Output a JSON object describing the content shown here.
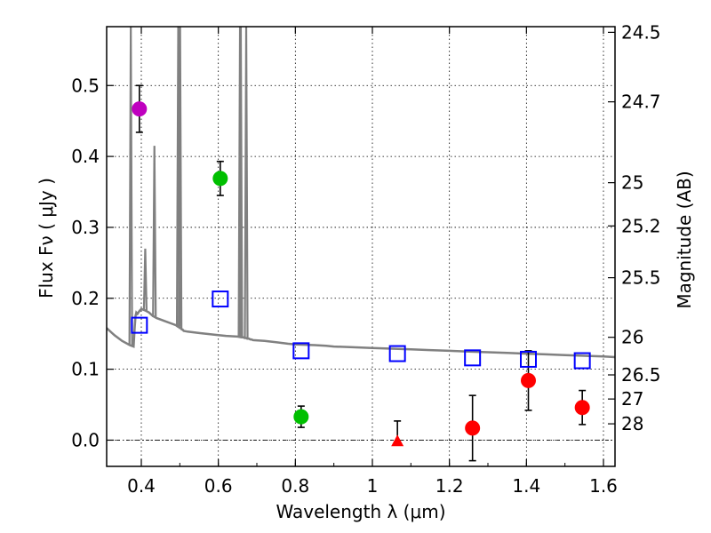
{
  "chart_data": {
    "type": "scatter",
    "xlabel": "Wavelength  λ (μm)",
    "ylabel": "Flux  Fν  ( μJy )",
    "ylabel_right": "Magnitude (AB)",
    "xlim": [
      0.31,
      1.63
    ],
    "ylim": [
      -0.037,
      0.583
    ],
    "x_ticks": [
      0.4,
      0.6,
      0.8,
      1.0,
      1.2,
      1.4,
      1.6
    ],
    "x_tick_labels": [
      "0.4",
      "0.6",
      "0.8",
      "1",
      "1.2",
      "1.4",
      "1.6"
    ],
    "y_ticks": [
      0.0,
      0.1,
      0.2,
      0.3,
      0.4,
      0.5
    ],
    "y_tick_labels": [
      "0.0",
      "0.1",
      "0.2",
      "0.3",
      "0.4",
      "0.5"
    ],
    "right_ticks": [
      {
        "flux": 0.575,
        "label": "24.5"
      },
      {
        "flux": 0.477,
        "label": "24.7"
      },
      {
        "flux": 0.363,
        "label": "25"
      },
      {
        "flux": 0.302,
        "label": "25.2"
      },
      {
        "flux": 0.229,
        "label": "25.5"
      },
      {
        "flux": 0.145,
        "label": "26"
      },
      {
        "flux": 0.092,
        "label": "26.5"
      },
      {
        "flux": 0.058,
        "label": "27"
      },
      {
        "flux": 0.023,
        "label": "28"
      }
    ],
    "grid": true,
    "colors": {
      "magenta": "#bf00bf",
      "green": "#00bf00",
      "red": "#ff0000",
      "blue": "#0000ff",
      "sed": "#808080"
    },
    "series": [
      {
        "name": "magenta point",
        "marker": "circle",
        "color": "magenta",
        "points": [
          {
            "x": 0.395,
            "y": 0.467,
            "err": 0.033
          }
        ]
      },
      {
        "name": "green points",
        "marker": "circle",
        "color": "green",
        "points": [
          {
            "x": 0.605,
            "y": 0.369,
            "err": 0.024
          },
          {
            "x": 0.815,
            "y": 0.033,
            "err": 0.015
          }
        ]
      },
      {
        "name": "red points",
        "marker": "circle",
        "color": "red",
        "points": [
          {
            "x": 1.26,
            "y": 0.017,
            "err": 0.046
          },
          {
            "x": 1.405,
            "y": 0.084,
            "err": 0.042
          },
          {
            "x": 1.545,
            "y": 0.046,
            "err": 0.024
          }
        ]
      },
      {
        "name": "red upper limit",
        "marker": "triangle",
        "color": "red",
        "points": [
          {
            "x": 1.065,
            "y": -0.001,
            "err_up": 0.028
          }
        ]
      },
      {
        "name": "model photometry",
        "marker": "open-square",
        "color": "blue",
        "points": [
          {
            "x": 0.395,
            "y": 0.162
          },
          {
            "x": 0.605,
            "y": 0.199
          },
          {
            "x": 0.815,
            "y": 0.126
          },
          {
            "x": 1.065,
            "y": 0.122
          },
          {
            "x": 1.26,
            "y": 0.116
          },
          {
            "x": 1.405,
            "y": 0.114
          },
          {
            "x": 1.545,
            "y": 0.112
          }
        ]
      }
    ],
    "sed_curve": {
      "name": "model spectrum",
      "color": "sed",
      "x": [
        0.31,
        0.33,
        0.35,
        0.37,
        0.38,
        0.383,
        0.385,
        0.387,
        0.39,
        0.395,
        0.4,
        0.41,
        0.42,
        0.43,
        0.44,
        0.45,
        0.46,
        0.48,
        0.49,
        0.495,
        0.497,
        0.5,
        0.503,
        0.505,
        0.507,
        0.51,
        0.52,
        0.55,
        0.6,
        0.62,
        0.65,
        0.66,
        0.665,
        0.668,
        0.672,
        0.675,
        0.68,
        0.683,
        0.686,
        0.69,
        0.72,
        0.75,
        0.78,
        0.8,
        0.85,
        0.88,
        0.9,
        0.95,
        1.0,
        1.05,
        1.1,
        1.15,
        1.2,
        1.25,
        1.3,
        1.35,
        1.4,
        1.45,
        1.5,
        1.55,
        1.6,
        1.63
      ],
      "y": [
        0.158,
        0.148,
        0.14,
        0.134,
        0.132,
        0.16,
        0.175,
        0.18,
        0.178,
        0.182,
        0.185,
        0.183,
        0.18,
        0.175,
        0.172,
        0.17,
        0.168,
        0.164,
        0.162,
        0.16,
        0.16,
        0.158,
        0.158,
        0.156,
        0.156,
        0.154,
        0.153,
        0.151,
        0.148,
        0.147,
        0.146,
        0.145,
        0.145,
        0.144,
        0.144,
        0.143,
        0.143,
        0.142,
        0.142,
        0.141,
        0.14,
        0.138,
        0.136,
        0.135,
        0.134,
        0.133,
        0.132,
        0.131,
        0.13,
        0.129,
        0.128,
        0.127,
        0.126,
        0.125,
        0.124,
        0.123,
        0.122,
        0.121,
        0.12,
        0.119,
        0.118,
        0.117
      ],
      "emission_lines": [
        {
          "x": 0.3727,
          "peak": 0.583
        },
        {
          "x": 0.4102,
          "peak": 0.27
        },
        {
          "x": 0.434,
          "peak": 0.415
        },
        {
          "x": 0.4959,
          "peak": 0.583
        },
        {
          "x": 0.5007,
          "peak": 0.583
        },
        {
          "x": 0.6563,
          "peak": 0.583
        },
        {
          "x": 0.6583,
          "peak": 0.583
        },
        {
          "x": 0.6724,
          "peak": 0.583
        }
      ]
    }
  }
}
